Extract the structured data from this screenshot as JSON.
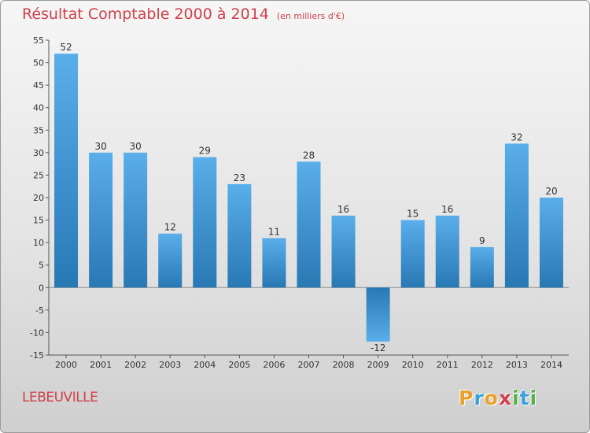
{
  "header": {
    "title": "Résultat Comptable 2000 à 2014",
    "subtitle": "(en milliers d'€)"
  },
  "footer": {
    "commune": "LEBEUVILLE",
    "logo_letters": [
      "P",
      "r",
      "o",
      "x",
      "i",
      "t",
      "i"
    ]
  },
  "colors": {
    "title": "#d0414b",
    "bar_top": "#5aaeea",
    "bar_bottom": "#2878b4",
    "logo": [
      "#e8a12a",
      "#3aa0d8",
      "#e8a12a",
      "#d0414b",
      "#59b047",
      "#3aa0d8",
      "#59b047"
    ]
  },
  "chart_data": {
    "type": "bar",
    "categories": [
      "2000",
      "2001",
      "2002",
      "2003",
      "2004",
      "2005",
      "2006",
      "2007",
      "2008",
      "2009",
      "2010",
      "2011",
      "2012",
      "2013",
      "2014"
    ],
    "values": [
      52,
      30,
      30,
      12,
      29,
      23,
      11,
      28,
      16,
      -12,
      15,
      16,
      9,
      32,
      20
    ],
    "value_labels": [
      "52",
      "30",
      "30",
      "12",
      "29",
      "23",
      "11",
      "28",
      "16",
      "-12",
      "15",
      "16",
      "9",
      "32",
      "20"
    ],
    "ylim": [
      -15,
      55
    ],
    "yticks": [
      -15,
      -10,
      -5,
      0,
      5,
      10,
      15,
      20,
      25,
      30,
      35,
      40,
      45,
      50,
      55
    ],
    "ytick_labels": [
      "-15",
      "-10",
      "-5",
      "0",
      "5",
      "10",
      "15",
      "20",
      "25",
      "30",
      "35",
      "40",
      "45",
      "50",
      "55"
    ],
    "title": "Résultat Comptable 2000 à 2014",
    "xlabel": "",
    "ylabel": "",
    "grid": false,
    "legend": "none"
  }
}
